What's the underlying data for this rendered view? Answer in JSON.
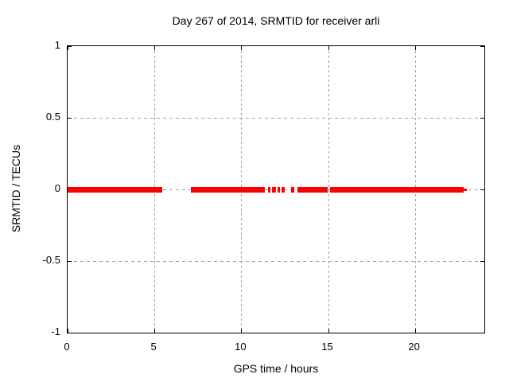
{
  "chart_data": {
    "type": "scatter",
    "title": "Day 267 of 2014, SRMTID for receiver arli",
    "xlabel": "GPS time / hours",
    "ylabel": "SRMTID / TECUs",
    "xlim": [
      0,
      24
    ],
    "ylim": [
      -1,
      1
    ],
    "xticks": [
      0,
      5,
      10,
      15,
      20
    ],
    "yticks": [
      1,
      0.5,
      0,
      -0.5,
      -1
    ],
    "grid": true,
    "legend": "none",
    "series": [
      {
        "name": "SRMTID",
        "color": "#ff0000",
        "y_value": 0,
        "coverage_segments_hours": [
          [
            0.0,
            5.06
          ],
          [
            7.47,
            11.36
          ],
          [
            11.54,
            11.68
          ],
          [
            11.77,
            12.0
          ],
          [
            12.09,
            12.23
          ],
          [
            12.32,
            12.51
          ],
          [
            12.87,
            13.05
          ],
          [
            13.23,
            14.96
          ],
          [
            15.1,
            22.81
          ]
        ],
        "isolated_points_hours": [
          5.13,
          5.32,
          7.22,
          7.37
        ],
        "thin_tail_hours": [
          22.81,
          23.0
        ]
      }
    ]
  },
  "colors": {
    "series": "#ff0000",
    "grid": "#a0a0a0",
    "border": "#000000",
    "text": "#000000",
    "background": "#ffffff"
  }
}
